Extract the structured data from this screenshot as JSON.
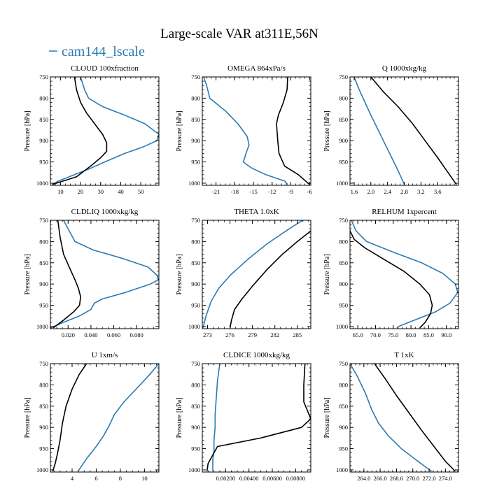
{
  "figure": {
    "title": "Large-scale VAR at311E,56N",
    "legend_label": "cam144_lscale",
    "legend_color": "#2b7bb4"
  },
  "colors": {
    "model": "#2b7bb4",
    "reference": "#000000",
    "axis": "#000000"
  },
  "chart_data": [
    {
      "type": "line",
      "title": "CLOUD  100xfraction",
      "ylabel": "Pressure [hPa]",
      "xlim": [
        5,
        59
      ],
      "ylim": [
        750,
        1005
      ],
      "xticks": [
        10,
        20,
        30,
        40,
        50
      ],
      "xticklabels": [
        "10",
        "20",
        "30",
        "40",
        "50"
      ],
      "yticks": [
        750,
        800,
        850,
        900,
        950,
        1000
      ],
      "yticklabels": [
        "750",
        "800",
        "850",
        "900",
        "950",
        "1000"
      ],
      "series": [
        {
          "name": "cam144_lscale",
          "style": "model",
          "x": [
            20,
            22,
            24,
            31,
            42,
            52,
            59,
            58,
            51,
            42,
            32,
            25,
            17,
            9,
            6
          ],
          "y": [
            750,
            780,
            800,
            820,
            840,
            860,
            885,
            900,
            915,
            930,
            950,
            965,
            980,
            995,
            1003
          ]
        },
        {
          "name": "reference",
          "style": "reference",
          "x": [
            17,
            18,
            20,
            23,
            27,
            31,
            33,
            33,
            30,
            25,
            18,
            6
          ],
          "y": [
            750,
            780,
            810,
            835,
            860,
            885,
            905,
            925,
            940,
            960,
            985,
            1003
          ]
        }
      ]
    },
    {
      "type": "line",
      "title": "OMEGA  864xPa/s",
      "ylabel": "Pressure [hPa]",
      "xlim": [
        -23.2,
        -5.8
      ],
      "ylim": [
        750,
        1005
      ],
      "xticks": [
        -21,
        -18,
        -15,
        -12,
        -9,
        -6
      ],
      "xticklabels": [
        "-21",
        "-18",
        "-15",
        "-12",
        "-9",
        "-6"
      ],
      "yticks": [
        750,
        800,
        850,
        900,
        950,
        1000
      ],
      "yticklabels": [
        "750",
        "800",
        "850",
        "900",
        "950",
        "1000"
      ],
      "series": [
        {
          "name": "cam144_lscale",
          "style": "model",
          "x": [
            -23,
            -22.5,
            -22,
            -19.5,
            -17.5,
            -16,
            -15.7,
            -16.2,
            -16.5,
            -16.6,
            -16.2,
            -15.2,
            -13,
            -10,
            -9.5
          ],
          "y": [
            750,
            770,
            800,
            830,
            860,
            890,
            910,
            930,
            945,
            950,
            955,
            965,
            980,
            995,
            1003
          ]
        },
        {
          "name": "reference",
          "style": "reference",
          "x": [
            -9.5,
            -9.6,
            -10.2,
            -11,
            -11.3,
            -11.2,
            -11.1,
            -10.9,
            -10,
            -7.8,
            -6
          ],
          "y": [
            750,
            780,
            810,
            840,
            860,
            880,
            900,
            930,
            960,
            980,
            1003
          ]
        }
      ]
    },
    {
      "type": "line",
      "title": "Q  1000xkg/kg",
      "ylabel": "Pressure [hPa]",
      "xlim": [
        1.5,
        4.1
      ],
      "ylim": [
        750,
        1005
      ],
      "xticks": [
        1.6,
        2.0,
        2.4,
        2.8,
        3.2,
        3.6
      ],
      "xticklabels": [
        "1.6",
        "2.0",
        "2.4",
        "2.8",
        "3.2",
        "3.6"
      ],
      "yticks": [
        750,
        800,
        850,
        900,
        950,
        1000
      ],
      "yticklabels": [
        "750",
        "800",
        "850",
        "900",
        "950",
        "1000"
      ],
      "series": [
        {
          "name": "cam144_lscale",
          "style": "model",
          "x": [
            1.6,
            1.72,
            1.86,
            2.0,
            2.15,
            2.3,
            2.45,
            2.6,
            2.72,
            2.8
          ],
          "y": [
            750,
            780,
            810,
            840,
            870,
            900,
            930,
            960,
            985,
            1003
          ]
        },
        {
          "name": "reference",
          "style": "reference",
          "x": [
            2.0,
            2.3,
            2.65,
            3.0,
            3.3,
            3.6,
            3.85,
            4.05
          ],
          "y": [
            750,
            785,
            820,
            860,
            900,
            940,
            975,
            1003
          ]
        }
      ]
    },
    {
      "type": "line",
      "title": "CLDLIQ  1000xkg/kg",
      "ylabel": "Pressure [hPa]",
      "xlim": [
        0.0045,
        0.0995
      ],
      "ylim": [
        750,
        1005
      ],
      "xticks": [
        0.02,
        0.04,
        0.06,
        0.08
      ],
      "xticklabels": [
        "0.020",
        "0.040",
        "0.060",
        "0.080"
      ],
      "yticks": [
        750,
        800,
        850,
        900,
        950,
        1000
      ],
      "yticklabels": [
        "750",
        "800",
        "850",
        "900",
        "950",
        "1000"
      ],
      "series": [
        {
          "name": "cam144_lscale",
          "style": "model",
          "x": [
            0.016,
            0.02,
            0.026,
            0.042,
            0.068,
            0.09,
            0.098,
            0.099,
            0.092,
            0.07,
            0.05,
            0.043,
            0.04,
            0.03,
            0.016,
            0.005
          ],
          "y": [
            750,
            770,
            800,
            820,
            840,
            860,
            880,
            890,
            900,
            920,
            935,
            945,
            960,
            975,
            990,
            1003
          ]
        },
        {
          "name": "reference",
          "style": "reference",
          "x": [
            0.011,
            0.013,
            0.016,
            0.021,
            0.026,
            0.029,
            0.031,
            0.03,
            0.025,
            0.016,
            0.007
          ],
          "y": [
            750,
            790,
            830,
            860,
            890,
            910,
            930,
            950,
            965,
            985,
            1003
          ]
        }
      ]
    },
    {
      "type": "line",
      "title": "THETA  1.0xK",
      "ylabel": "Pressure [hPa]",
      "xlim": [
        272.3,
        286.8
      ],
      "ylim": [
        750,
        1005
      ],
      "xticks": [
        273,
        276,
        279,
        282,
        285
      ],
      "xticklabels": [
        "273",
        "276",
        "279",
        "282",
        "285"
      ],
      "yticks": [
        750,
        800,
        850,
        900,
        950,
        1000
      ],
      "yticklabels": [
        "750",
        "800",
        "850",
        "900",
        "950",
        "1000"
      ],
      "series": [
        {
          "name": "cam144_lscale",
          "style": "model",
          "x": [
            285.7,
            283.5,
            281,
            278.5,
            276,
            274.5,
            273.5,
            272.8,
            272.4
          ],
          "y": [
            750,
            775,
            805,
            840,
            880,
            910,
            940,
            975,
            1003
          ]
        },
        {
          "name": "reference",
          "style": "reference",
          "x": [
            286.8,
            285,
            283,
            281,
            279,
            277.6,
            276.6,
            276.2,
            276
          ],
          "y": [
            775,
            800,
            830,
            865,
            905,
            935,
            960,
            985,
            1003
          ]
        }
      ]
    },
    {
      "type": "line",
      "title": "RELHUM  1xpercent",
      "ylabel": "Pressure [hPa]",
      "xlim": [
        62.8,
        93.4
      ],
      "ylim": [
        750,
        1005
      ],
      "xticks": [
        65,
        70,
        75,
        80,
        85,
        90
      ],
      "xticklabels": [
        "65.0",
        "70.0",
        "75.0",
        "80.0",
        "85.0",
        "90.0"
      ],
      "yticks": [
        750,
        800,
        850,
        900,
        950,
        1000
      ],
      "yticklabels": [
        "750",
        "800",
        "850",
        "900",
        "950",
        "1000"
      ],
      "series": [
        {
          "name": "cam144_lscale",
          "style": "model",
          "x": [
            63.2,
            64.5,
            67.5,
            75,
            83,
            89,
            92.5,
            93.2,
            91,
            87,
            81,
            77,
            76
          ],
          "y": [
            750,
            775,
            800,
            825,
            850,
            875,
            900,
            920,
            945,
            965,
            985,
            998,
            1003
          ]
        },
        {
          "name": "reference",
          "style": "reference",
          "x": [
            62.8,
            64,
            67,
            72,
            78,
            82.5,
            85.2,
            86,
            85.5,
            84,
            82.5
          ],
          "y": [
            775,
            795,
            815,
            840,
            870,
            900,
            925,
            950,
            970,
            990,
            1003
          ]
        }
      ]
    },
    {
      "type": "line",
      "title": "U  1xm/s",
      "ylabel": "Pressure [hPa]",
      "xlim": [
        2.2,
        11.2
      ],
      "ylim": [
        750,
        1005
      ],
      "xticks": [
        4,
        6,
        8,
        10
      ],
      "xticklabels": [
        "4",
        "6",
        "8",
        "10"
      ],
      "yticks": [
        750,
        800,
        850,
        900,
        950,
        1000
      ],
      "yticklabels": [
        "750",
        "800",
        "850",
        "900",
        "950",
        "1000"
      ],
      "series": [
        {
          "name": "cam144_lscale",
          "style": "model",
          "x": [
            11.2,
            10.3,
            9.3,
            8.3,
            7.5,
            7,
            6.6,
            6,
            5.3,
            4.8,
            4.5
          ],
          "y": [
            750,
            780,
            810,
            840,
            870,
            900,
            920,
            945,
            970,
            990,
            1003
          ]
        },
        {
          "name": "reference",
          "style": "reference",
          "x": [
            5.2,
            4.6,
            4,
            3.5,
            3.2,
            3,
            2.8,
            2.6,
            2.4
          ],
          "y": [
            750,
            775,
            810,
            850,
            890,
            930,
            960,
            985,
            1003
          ]
        }
      ]
    },
    {
      "type": "line",
      "title": "CLDICE  1000xkg/kg",
      "ylabel": "Pressure [hPa]",
      "xlim": [
        0,
        0.0093
      ],
      "ylim": [
        750,
        1005
      ],
      "xticks": [
        0.002,
        0.004,
        0.006,
        0.008
      ],
      "xticklabels": [
        "0.00200",
        "0.00400",
        "0.00600",
        "0.00800"
      ],
      "yticks": [
        750,
        800,
        850,
        900,
        950,
        1000
      ],
      "yticklabels": [
        "750",
        "800",
        "850",
        "900",
        "950",
        "1000"
      ],
      "series": [
        {
          "name": "cam144_lscale",
          "style": "model",
          "x": [
            0.0015,
            0.0013,
            0.0012,
            0.0011,
            0.0011,
            0.001,
            0.001,
            0.0009,
            0.0009,
            0.0009
          ],
          "y": [
            750,
            790,
            830,
            870,
            900,
            930,
            955,
            975,
            990,
            1003
          ]
        },
        {
          "name": "reference",
          "style": "reference",
          "x": [
            0.0088,
            0.0087,
            0.0087,
            0.0093,
            0.0085,
            0.005,
            0.0013,
            0.0005,
            0.0004
          ],
          "y": [
            750,
            800,
            840,
            880,
            900,
            925,
            945,
            985,
            1003
          ]
        }
      ]
    },
    {
      "type": "line",
      "title": "T  1xK",
      "ylabel": "Pressure [hPa]",
      "xlim": [
        262.3,
        275.6
      ],
      "ylim": [
        750,
        1005
      ],
      "xticks": [
        264,
        266,
        268,
        270,
        272,
        274
      ],
      "xticklabels": [
        "264.0",
        "266.0",
        "268.0",
        "270.0",
        "272.0",
        "274.0"
      ],
      "yticks": [
        750,
        800,
        850,
        900,
        950,
        1000
      ],
      "yticklabels": [
        "750",
        "800",
        "850",
        "900",
        "950",
        "1000"
      ],
      "series": [
        {
          "name": "cam144_lscale",
          "style": "model",
          "x": [
            262.3,
            263.2,
            264.2,
            265,
            265.8,
            267,
            268.6,
            270.3,
            271.7,
            272.3
          ],
          "y": [
            750,
            780,
            820,
            860,
            890,
            920,
            950,
            975,
            995,
            1003
          ]
        },
        {
          "name": "reference",
          "style": "reference",
          "x": [
            265.3,
            266.6,
            268,
            269.5,
            271,
            272.6,
            274,
            275.2
          ],
          "y": [
            750,
            785,
            825,
            865,
            905,
            945,
            980,
            1003
          ]
        }
      ]
    }
  ]
}
